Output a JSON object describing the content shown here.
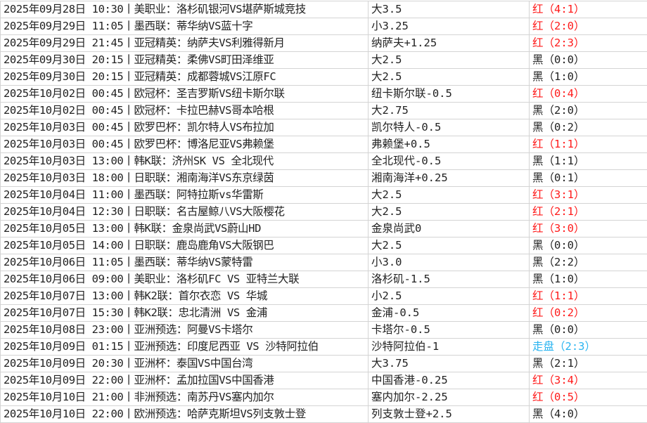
{
  "colors": {
    "red": "#ff1a1a",
    "black": "#222222",
    "push": "#2ab4f0"
  },
  "rows": [
    {
      "match": "2025年09月28日 10:30丨美职业：洛杉矶银河VS堪萨斯城竞技",
      "pick": "大3.5",
      "result": "红（4:1）",
      "status": "red"
    },
    {
      "match": "2025年09月29日 11:05丨墨西联：蒂华纳VS蓝十字",
      "pick": "小3.25",
      "result": "红（2:0）",
      "status": "red"
    },
    {
      "match": "2025年09月29日 21:45丨亚冠精英：纳萨夫VS利雅得新月",
      "pick": "纳萨夫+1.25",
      "result": "红（2:3）",
      "status": "red"
    },
    {
      "match": "2025年09月30日 20:15丨亚冠精英：柔佛VS町田泽维亚",
      "pick": "大2.5",
      "result": "黑（0:0）",
      "status": "black"
    },
    {
      "match": "2025年09月30日 20:15丨亚冠精英：成都蓉城VS江原FC",
      "pick": "大2.5",
      "result": "黑（1:0）",
      "status": "black"
    },
    {
      "match": "2025年10月02日 00:45丨欧冠杯：圣吉罗斯VS纽卡斯尔联",
      "pick": "纽卡斯尔联-0.5",
      "result": "红（0:4）",
      "status": "red"
    },
    {
      "match": "2025年10月02日 00:45丨欧冠杯：卡拉巴赫VS哥本哈根",
      "pick": "大2.75",
      "result": "黑（2:0）",
      "status": "black"
    },
    {
      "match": "2025年10月03日 00:45丨欧罗巴杯：凯尔特人VS布拉加",
      "pick": "凯尔特人-0.5",
      "result": "黑（0:2）",
      "status": "black"
    },
    {
      "match": "2025年10月03日 00:45丨欧罗巴杯：博洛尼亚VS弗赖堡",
      "pick": "弗赖堡+0.5",
      "result": "红（1:1）",
      "status": "red"
    },
    {
      "match": "2025年10月03日 13:00丨韩K联：济州SK VS 全北现代",
      "pick": "全北现代-0.5",
      "result": "黑（1:1）",
      "status": "black"
    },
    {
      "match": "2025年10月03日 18:00丨日职联：湘南海洋VS东京绿茵",
      "pick": "湘南海洋+0.25",
      "result": "黑（0:1）",
      "status": "black"
    },
    {
      "match": "2025年10月04日 11:00丨墨西联：阿特拉斯vs华雷斯",
      "pick": "大2.5",
      "result": "红（3:1）",
      "status": "red"
    },
    {
      "match": "2025年10月04日 12:30丨日职联：名古屋鲸八VS大阪樱花",
      "pick": "大2.5",
      "result": "红（2:1）",
      "status": "red"
    },
    {
      "match": "2025年10月05日 13:00丨韩K联：金泉尚武VS蔚山HD",
      "pick": "金泉尚武0",
      "result": "红（3:0）",
      "status": "red"
    },
    {
      "match": "2025年10月05日 14:00丨日职联：鹿岛鹿角VS大阪钢巴",
      "pick": "大2.5",
      "result": "黑（0:0）",
      "status": "black"
    },
    {
      "match": "2025年10月06日 11:05丨墨西联：蒂华纳VS蒙特雷",
      "pick": "小3.0",
      "result": "黑（2:2）",
      "status": "black"
    },
    {
      "match": "2025年10月06日 09:00丨美职业：洛杉矶FC VS 亚特兰大联",
      "pick": "洛杉矶-1.5",
      "result": "黑（1:0）",
      "status": "black"
    },
    {
      "match": "2025年10月07日 13:00丨韩K2联：首尔衣恋 VS 华城",
      "pick": "小2.5",
      "result": "红（1:1）",
      "status": "red"
    },
    {
      "match": "2025年10月07日 15:30丨韩K2联：忠北清洲 VS 金浦",
      "pick": "金浦-0.5",
      "result": "红（0:2）",
      "status": "red"
    },
    {
      "match": "2025年10月08日 23:00丨亚洲预选：阿曼VS卡塔尔",
      "pick": "卡塔尔-0.5",
      "result": "黑（0:0）",
      "status": "black"
    },
    {
      "match": "2025年10月09日 01:15丨亚洲预选：印度尼西亚 VS 沙特阿拉伯",
      "pick": "沙特阿拉伯-1",
      "result": "走盘（2:3）",
      "status": "push"
    },
    {
      "match": "2025年10月09日 20:30丨亚洲杯：泰国VS中国台湾",
      "pick": "大3.75",
      "result": "黑（2:1）",
      "status": "black"
    },
    {
      "match": "2025年10月09日 22:00丨亚洲杯：孟加拉国VS中国香港",
      "pick": "中国香港-0.25",
      "result": "红（3:4）",
      "status": "red"
    },
    {
      "match": "2025年10月10日 21:00丨非洲预选：南苏丹VS塞内加尔",
      "pick": "塞内加尔-2.25",
      "result": "红（0:5）",
      "status": "red"
    },
    {
      "match": "2025年10月10日 22:00丨欧洲预选：哈萨克斯坦VS列支敦士登",
      "pick": "列支敦士登+2.5",
      "result": "黑（4:0）",
      "status": "black"
    }
  ]
}
